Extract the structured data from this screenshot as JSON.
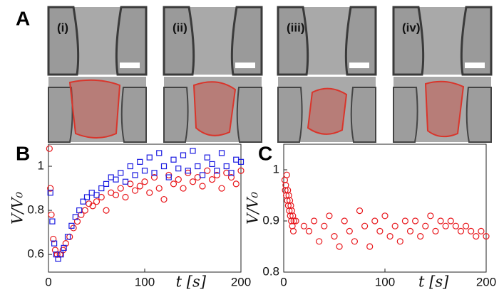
{
  "panel_labels": [
    "A",
    "B",
    "C"
  ],
  "image_labels": [
    "(i)",
    "(ii)",
    "(iii)",
    "(iv)"
  ],
  "chart_data": [
    {
      "type": "scatter",
      "y_label": "V/V₀",
      "x_label": "t [s]",
      "xlim": [
        0,
        200
      ],
      "xticks": [
        0,
        100,
        200
      ],
      "ylim": [
        0.52,
        1.1
      ],
      "yticks": [
        0.6,
        0.8,
        1
      ],
      "series": [
        {
          "color": "#e8161b",
          "marker": "circle",
          "x": [
            1,
            2,
            3,
            5,
            7,
            9,
            12,
            15,
            18,
            22,
            26,
            30,
            34,
            38,
            42,
            46,
            50,
            55,
            60,
            65,
            70,
            75,
            80,
            85,
            90,
            95,
            100,
            105,
            110,
            115,
            120,
            125,
            130,
            135,
            140,
            145,
            150,
            155,
            160,
            165,
            170,
            175,
            180,
            185,
            190,
            195,
            200
          ],
          "values": [
            1.08,
            0.9,
            0.78,
            0.67,
            0.62,
            0.6,
            0.6,
            0.62,
            0.65,
            0.68,
            0.72,
            0.75,
            0.78,
            0.8,
            0.83,
            0.82,
            0.84,
            0.86,
            0.8,
            0.88,
            0.87,
            0.9,
            0.86,
            0.92,
            0.89,
            0.91,
            0.93,
            0.88,
            0.95,
            0.9,
            0.85,
            0.96,
            0.92,
            0.94,
            0.9,
            0.97,
            0.93,
            0.95,
            0.91,
            0.98,
            0.94,
            0.96,
            0.9,
            0.97,
            0.95,
            0.92,
            0.98
          ]
        },
        {
          "color": "#1a1ae0",
          "marker": "square",
          "x": [
            2,
            4,
            6,
            8,
            10,
            13,
            16,
            20,
            24,
            28,
            32,
            36,
            40,
            45,
            50,
            55,
            60,
            65,
            70,
            75,
            80,
            85,
            90,
            95,
            100,
            105,
            110,
            115,
            120,
            125,
            130,
            135,
            140,
            145,
            150,
            155,
            160,
            165,
            170,
            175,
            180,
            185,
            190,
            195,
            200
          ],
          "values": [
            0.88,
            0.75,
            0.65,
            0.6,
            0.58,
            0.6,
            0.63,
            0.68,
            0.73,
            0.77,
            0.8,
            0.84,
            0.86,
            0.88,
            0.87,
            0.9,
            0.92,
            0.95,
            0.94,
            0.97,
            0.93,
            1.0,
            0.96,
            1.02,
            0.98,
            1.04,
            0.97,
            1.06,
            1.0,
            0.95,
            1.03,
            0.99,
            1.05,
            0.98,
            1.07,
            1.0,
            0.96,
            1.04,
            1.01,
            0.98,
            1.06,
            1.0,
            0.97,
            1.03,
            1.02
          ]
        }
      ]
    },
    {
      "type": "scatter",
      "y_label": "V/V₀",
      "x_label": "t [s]",
      "xlim": [
        0,
        200
      ],
      "xticks": [
        0,
        100,
        200
      ],
      "ylim": [
        0.8,
        1.05
      ],
      "yticks": [
        0.8,
        0.9,
        1
      ],
      "series": [
        {
          "color": "#e8161b",
          "marker": "circle",
          "x": [
            1,
            1.5,
            2,
            2.5,
            3,
            3.5,
            4,
            4.5,
            5,
            5.5,
            6,
            6.5,
            7,
            7.5,
            8,
            8.5,
            9,
            9.5,
            10,
            12,
            20,
            25,
            30,
            35,
            40,
            45,
            50,
            55,
            60,
            65,
            70,
            75,
            80,
            85,
            90,
            95,
            100,
            105,
            110,
            115,
            120,
            125,
            130,
            135,
            140,
            145,
            150,
            155,
            160,
            165,
            170,
            175,
            180,
            185,
            190,
            195,
            200
          ],
          "values": [
            0.98,
            0.96,
            0.97,
            0.95,
            0.99,
            0.94,
            0.96,
            0.93,
            0.95,
            0.92,
            0.94,
            0.91,
            0.93,
            0.9,
            0.92,
            0.89,
            0.91,
            0.88,
            0.9,
            0.9,
            0.89,
            0.88,
            0.9,
            0.86,
            0.89,
            0.91,
            0.87,
            0.85,
            0.9,
            0.88,
            0.86,
            0.92,
            0.89,
            0.85,
            0.9,
            0.88,
            0.91,
            0.87,
            0.89,
            0.86,
            0.9,
            0.88,
            0.9,
            0.87,
            0.89,
            0.91,
            0.88,
            0.9,
            0.89,
            0.9,
            0.89,
            0.88,
            0.89,
            0.88,
            0.87,
            0.88,
            0.87
          ]
        }
      ]
    }
  ]
}
